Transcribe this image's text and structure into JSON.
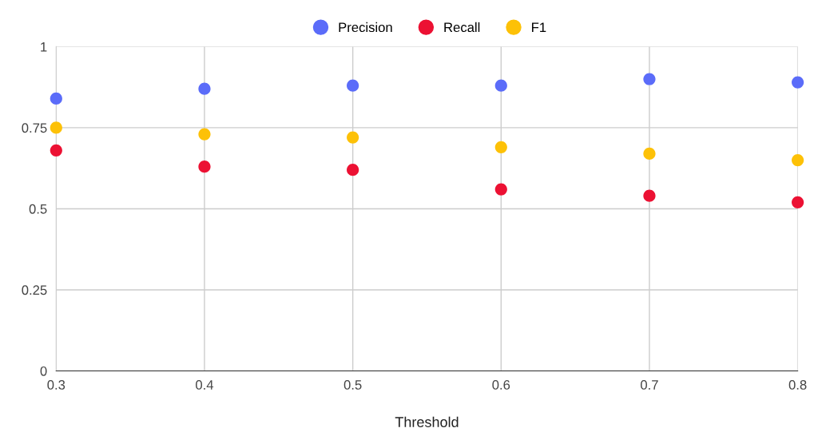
{
  "chart_data": {
    "type": "scatter",
    "xlabel": "Threshold",
    "x": [
      0.3,
      0.4,
      0.5,
      0.6,
      0.7,
      0.8
    ],
    "series": [
      {
        "name": "Precision",
        "color": "#5b6cf9",
        "values": [
          0.84,
          0.87,
          0.88,
          0.88,
          0.9,
          0.89
        ]
      },
      {
        "name": "Recall",
        "color": "#ec1133",
        "values": [
          0.68,
          0.63,
          0.62,
          0.56,
          0.54,
          0.52
        ]
      },
      {
        "name": "F1",
        "color": "#fdc107",
        "values": [
          0.75,
          0.73,
          0.72,
          0.69,
          0.67,
          0.65
        ]
      }
    ],
    "xlim": [
      0.3,
      0.8
    ],
    "xticks": [
      0.3,
      0.4,
      0.5,
      0.6,
      0.7,
      0.8
    ],
    "ylim": [
      0,
      1
    ],
    "yticks": [
      0,
      0.25,
      0.5,
      0.75,
      1
    ],
    "grid": true,
    "legend": "top",
    "marker": "circle"
  }
}
